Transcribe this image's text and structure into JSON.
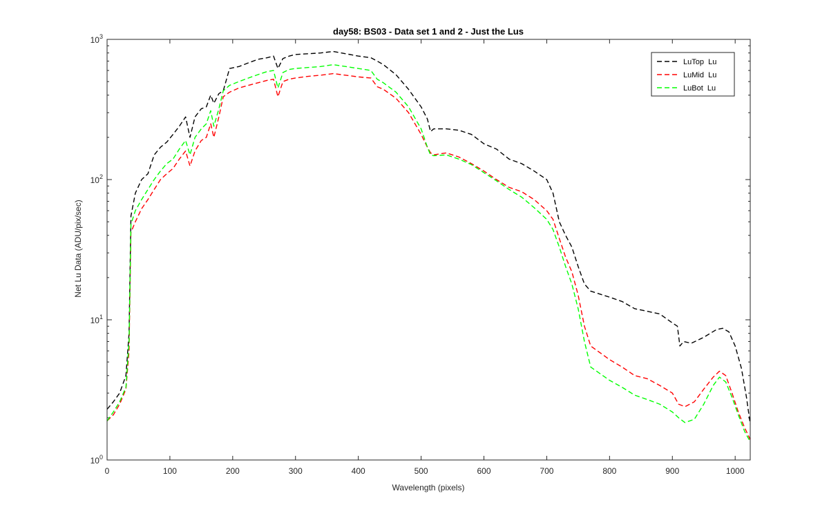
{
  "chart_data": {
    "type": "line",
    "title": "day58: BS03 - Data set 1 and 2 - Just the Lus",
    "xlabel": "Wavelength (pixels)",
    "ylabel": "Net Lu Data (ADU/pix/sec)",
    "xlim": [
      0,
      1024
    ],
    "ylim": [
      1,
      1000
    ],
    "yscale": "log",
    "x_ticks": [
      0,
      100,
      200,
      300,
      400,
      500,
      600,
      700,
      800,
      900,
      1000
    ],
    "x_tick_labels": [
      "0",
      "100",
      "200",
      "300",
      "400",
      "500",
      "600",
      "700",
      "800",
      "900",
      "1000"
    ],
    "y_ticks": [
      1,
      10,
      100,
      1000
    ],
    "y_tick_labels": [
      {
        "base": "10",
        "exp": "0"
      },
      {
        "base": "10",
        "exp": "1"
      },
      {
        "base": "10",
        "exp": "2"
      },
      {
        "base": "10",
        "exp": "3"
      }
    ],
    "grid": false,
    "legend_position": "top-right",
    "series": [
      {
        "name": "LuTop  Lu",
        "color": "#000000",
        "style": "dashed",
        "points": [
          [
            0,
            2.3
          ],
          [
            10,
            2.6
          ],
          [
            20,
            3.0
          ],
          [
            30,
            4.0
          ],
          [
            35,
            8
          ],
          [
            38,
            55
          ],
          [
            45,
            80
          ],
          [
            55,
            100
          ],
          [
            65,
            110
          ],
          [
            75,
            150
          ],
          [
            85,
            170
          ],
          [
            95,
            185
          ],
          [
            105,
            210
          ],
          [
            115,
            240
          ],
          [
            125,
            280
          ],
          [
            132,
            200
          ],
          [
            140,
            280
          ],
          [
            150,
            320
          ],
          [
            158,
            330
          ],
          [
            165,
            400
          ],
          [
            170,
            350
          ],
          [
            178,
            410
          ],
          [
            185,
            430
          ],
          [
            195,
            620
          ],
          [
            210,
            640
          ],
          [
            225,
            680
          ],
          [
            240,
            720
          ],
          [
            255,
            740
          ],
          [
            265,
            760
          ],
          [
            272,
            620
          ],
          [
            280,
            730
          ],
          [
            290,
            760
          ],
          [
            300,
            780
          ],
          [
            320,
            790
          ],
          [
            340,
            800
          ],
          [
            360,
            820
          ],
          [
            380,
            790
          ],
          [
            400,
            760
          ],
          [
            420,
            740
          ],
          [
            430,
            700
          ],
          [
            440,
            660
          ],
          [
            460,
            560
          ],
          [
            480,
            440
          ],
          [
            500,
            330
          ],
          [
            510,
            270
          ],
          [
            515,
            220
          ],
          [
            520,
            230
          ],
          [
            540,
            230
          ],
          [
            560,
            225
          ],
          [
            580,
            210
          ],
          [
            600,
            180
          ],
          [
            620,
            165
          ],
          [
            640,
            140
          ],
          [
            660,
            130
          ],
          [
            680,
            115
          ],
          [
            700,
            100
          ],
          [
            710,
            80
          ],
          [
            720,
            50
          ],
          [
            730,
            40
          ],
          [
            740,
            33
          ],
          [
            750,
            24
          ],
          [
            760,
            18
          ],
          [
            770,
            16
          ],
          [
            800,
            14.5
          ],
          [
            820,
            13.5
          ],
          [
            840,
            12
          ],
          [
            860,
            11.5
          ],
          [
            880,
            11
          ],
          [
            900,
            9.5
          ],
          [
            908,
            9.0
          ],
          [
            912,
            6.5
          ],
          [
            918,
            7.0
          ],
          [
            930,
            6.8
          ],
          [
            950,
            7.5
          ],
          [
            970,
            8.5
          ],
          [
            980,
            8.7
          ],
          [
            990,
            8.2
          ],
          [
            1000,
            6.5
          ],
          [
            1010,
            4.5
          ],
          [
            1018,
            2.8
          ],
          [
            1024,
            1.8
          ]
        ]
      },
      {
        "name": "LuMid  Lu",
        "color": "#ff0000",
        "style": "dashed",
        "points": [
          [
            0,
            1.9
          ],
          [
            10,
            2.1
          ],
          [
            20,
            2.5
          ],
          [
            30,
            3.2
          ],
          [
            35,
            6
          ],
          [
            38,
            42
          ],
          [
            45,
            50
          ],
          [
            55,
            62
          ],
          [
            65,
            72
          ],
          [
            75,
            85
          ],
          [
            85,
            100
          ],
          [
            95,
            110
          ],
          [
            105,
            120
          ],
          [
            115,
            140
          ],
          [
            125,
            160
          ],
          [
            132,
            125
          ],
          [
            140,
            160
          ],
          [
            150,
            190
          ],
          [
            158,
            200
          ],
          [
            165,
            250
          ],
          [
            170,
            200
          ],
          [
            178,
            280
          ],
          [
            185,
            390
          ],
          [
            195,
            420
          ],
          [
            210,
            450
          ],
          [
            225,
            470
          ],
          [
            240,
            490
          ],
          [
            255,
            510
          ],
          [
            265,
            520
          ],
          [
            272,
            390
          ],
          [
            280,
            500
          ],
          [
            290,
            520
          ],
          [
            300,
            530
          ],
          [
            320,
            545
          ],
          [
            340,
            555
          ],
          [
            360,
            570
          ],
          [
            380,
            555
          ],
          [
            400,
            540
          ],
          [
            420,
            530
          ],
          [
            430,
            460
          ],
          [
            440,
            440
          ],
          [
            460,
            380
          ],
          [
            480,
            300
          ],
          [
            500,
            210
          ],
          [
            510,
            170
          ],
          [
            515,
            155
          ],
          [
            520,
            150
          ],
          [
            540,
            155
          ],
          [
            560,
            145
          ],
          [
            580,
            130
          ],
          [
            600,
            115
          ],
          [
            620,
            100
          ],
          [
            640,
            88
          ],
          [
            660,
            82
          ],
          [
            680,
            72
          ],
          [
            700,
            60
          ],
          [
            710,
            52
          ],
          [
            720,
            38
          ],
          [
            730,
            28
          ],
          [
            740,
            22
          ],
          [
            750,
            15
          ],
          [
            760,
            9
          ],
          [
            770,
            6.5
          ],
          [
            800,
            5.2
          ],
          [
            820,
            4.6
          ],
          [
            840,
            4.0
          ],
          [
            860,
            3.8
          ],
          [
            880,
            3.4
          ],
          [
            900,
            3.0
          ],
          [
            910,
            2.5
          ],
          [
            920,
            2.4
          ],
          [
            935,
            2.6
          ],
          [
            950,
            3.2
          ],
          [
            965,
            3.9
          ],
          [
            975,
            4.3
          ],
          [
            985,
            4.0
          ],
          [
            995,
            3.0
          ],
          [
            1005,
            2.2
          ],
          [
            1015,
            1.7
          ],
          [
            1024,
            1.4
          ]
        ]
      },
      {
        "name": "LuBot  Lu",
        "color": "#00ff00",
        "style": "dashed",
        "points": [
          [
            0,
            1.9
          ],
          [
            10,
            2.2
          ],
          [
            20,
            2.6
          ],
          [
            30,
            3.3
          ],
          [
            35,
            7
          ],
          [
            38,
            48
          ],
          [
            45,
            60
          ],
          [
            55,
            72
          ],
          [
            65,
            85
          ],
          [
            75,
            100
          ],
          [
            85,
            115
          ],
          [
            95,
            130
          ],
          [
            105,
            140
          ],
          [
            115,
            165
          ],
          [
            125,
            190
          ],
          [
            132,
            150
          ],
          [
            140,
            200
          ],
          [
            150,
            230
          ],
          [
            158,
            250
          ],
          [
            165,
            310
          ],
          [
            170,
            240
          ],
          [
            178,
            320
          ],
          [
            185,
            430
          ],
          [
            195,
            470
          ],
          [
            210,
            500
          ],
          [
            225,
            530
          ],
          [
            240,
            560
          ],
          [
            255,
            590
          ],
          [
            265,
            600
          ],
          [
            272,
            450
          ],
          [
            280,
            580
          ],
          [
            290,
            610
          ],
          [
            300,
            620
          ],
          [
            320,
            630
          ],
          [
            340,
            640
          ],
          [
            360,
            660
          ],
          [
            380,
            640
          ],
          [
            400,
            620
          ],
          [
            420,
            600
          ],
          [
            430,
            520
          ],
          [
            440,
            490
          ],
          [
            460,
            420
          ],
          [
            480,
            330
          ],
          [
            500,
            230
          ],
          [
            510,
            170
          ],
          [
            515,
            150
          ],
          [
            520,
            148
          ],
          [
            540,
            150
          ],
          [
            560,
            140
          ],
          [
            580,
            128
          ],
          [
            600,
            112
          ],
          [
            620,
            98
          ],
          [
            640,
            85
          ],
          [
            660,
            75
          ],
          [
            680,
            63
          ],
          [
            700,
            52
          ],
          [
            710,
            44
          ],
          [
            720,
            33
          ],
          [
            730,
            24
          ],
          [
            740,
            18
          ],
          [
            750,
            12
          ],
          [
            760,
            7
          ],
          [
            770,
            4.6
          ],
          [
            800,
            3.7
          ],
          [
            820,
            3.3
          ],
          [
            840,
            2.9
          ],
          [
            860,
            2.7
          ],
          [
            880,
            2.5
          ],
          [
            900,
            2.2
          ],
          [
            910,
            2.0
          ],
          [
            920,
            1.85
          ],
          [
            935,
            1.95
          ],
          [
            950,
            2.5
          ],
          [
            965,
            3.4
          ],
          [
            975,
            3.9
          ],
          [
            985,
            3.6
          ],
          [
            995,
            2.8
          ],
          [
            1005,
            2.1
          ],
          [
            1015,
            1.6
          ],
          [
            1024,
            1.35
          ]
        ]
      }
    ]
  }
}
